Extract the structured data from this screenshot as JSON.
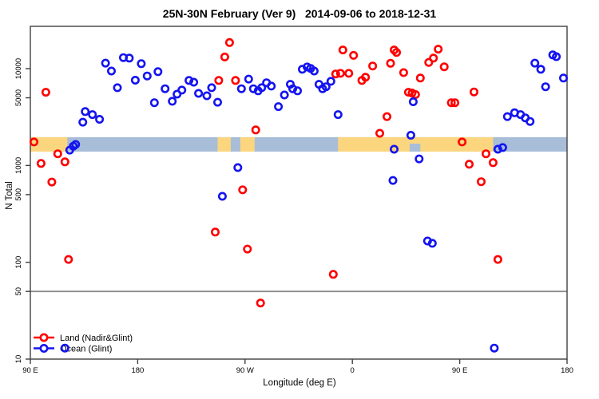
{
  "chart_data": {
    "type": "scatter",
    "title": "25N-30N February (Ver 9)   2014-09-06 to 2018-12-31",
    "xlabel": "Longitude (deg E)",
    "ylabel": "N Total",
    "x_axis": {
      "range_deg": [
        90,
        540
      ],
      "ticks_deg": [
        90,
        180,
        270,
        360,
        450,
        540
      ],
      "tick_labels": [
        "90 E",
        "180",
        "90 W",
        "0",
        "90 E",
        "180"
      ]
    },
    "y_axis": {
      "scale": "log",
      "range": [
        10,
        27000
      ],
      "ticks": [
        10,
        50,
        100,
        500,
        1000,
        5000,
        10000
      ],
      "tick_labels": [
        "10",
        "50",
        "100",
        "500",
        "1000",
        "5000",
        "10000"
      ]
    },
    "grid": false,
    "reference_line": {
      "y": 50,
      "color": "#8c8c8c"
    },
    "map_strip": {
      "comment": "latitude-band world map drawn as horizontal strip",
      "value_top": 1960,
      "value_bottom": 1390,
      "ocean_color": "#a8bdd8",
      "land_color": "#fbd67e",
      "land_segments_deg": [
        [
          90,
          121
        ],
        [
          247,
          258
        ],
        [
          266,
          278
        ],
        [
          348,
          478
        ]
      ],
      "ocean_insets_deg": [
        [
          408,
          417
        ]
      ]
    },
    "legend": {
      "position": "bottom-left"
    },
    "series": [
      {
        "name": "Land (Nadir&Glint)",
        "color": "#ff0000",
        "points": [
          [
            103,
            5700
          ],
          [
            257,
            18600
          ],
          [
            253,
            13200
          ],
          [
            248,
            7550
          ],
          [
            262,
            7550
          ],
          [
            346,
            8800
          ],
          [
            350,
            8950
          ],
          [
            352,
            15600
          ],
          [
            361,
            13700
          ],
          [
            357,
            8950
          ],
          [
            368,
            7550
          ],
          [
            371,
            8150
          ],
          [
            377,
            10650
          ],
          [
            395,
            15600
          ],
          [
            392,
            11350
          ],
          [
            397,
            14700
          ],
          [
            403,
            9100
          ],
          [
            424,
            11600
          ],
          [
            428,
            12850
          ],
          [
            432,
            15900
          ],
          [
            437,
            10450
          ],
          [
            417,
            8000
          ],
          [
            407,
            5700
          ],
          [
            410,
            5600
          ],
          [
            413,
            5400
          ],
          [
            443,
            4450
          ],
          [
            446,
            4450
          ],
          [
            462,
            5750
          ],
          [
            389,
            3200
          ],
          [
            93,
            1750
          ],
          [
            113,
            1320
          ],
          [
            99,
            1050
          ],
          [
            119,
            1090
          ],
          [
            108,
            675
          ],
          [
            279,
            2330
          ],
          [
            383,
            2150
          ],
          [
            268,
            560
          ],
          [
            452,
            1750
          ],
          [
            472,
            1320
          ],
          [
            458,
            1030
          ],
          [
            478,
            1070
          ],
          [
            468,
            680
          ],
          [
            122,
            107
          ],
          [
            245,
            205
          ],
          [
            272,
            137
          ],
          [
            344,
            75
          ],
          [
            283,
            38
          ],
          [
            482,
            107
          ]
        ]
      },
      {
        "name": "Ocean (Glint)",
        "color": "#1414f0",
        "points": [
          [
            153,
            11400
          ],
          [
            158,
            9450
          ],
          [
            168,
            13000
          ],
          [
            173,
            12850
          ],
          [
            183,
            11250
          ],
          [
            163,
            6350
          ],
          [
            178,
            7600
          ],
          [
            188,
            8400
          ],
          [
            197,
            9300
          ],
          [
            194,
            4450
          ],
          [
            203,
            6200
          ],
          [
            209,
            4600
          ],
          [
            213,
            5450
          ],
          [
            217,
            6000
          ],
          [
            223,
            7550
          ],
          [
            227,
            7250
          ],
          [
            231,
            5550
          ],
          [
            238,
            5250
          ],
          [
            242,
            6350
          ],
          [
            247,
            4500
          ],
          [
            267,
            6200
          ],
          [
            273,
            7800
          ],
          [
            277,
            6200
          ],
          [
            281,
            5900
          ],
          [
            284,
            6350
          ],
          [
            288,
            7150
          ],
          [
            292,
            6600
          ],
          [
            298,
            4050
          ],
          [
            303,
            5350
          ],
          [
            308,
            6900
          ],
          [
            310,
            6200
          ],
          [
            314,
            5900
          ],
          [
            318,
            9850
          ],
          [
            322,
            10400
          ],
          [
            325,
            10050
          ],
          [
            328,
            9450
          ],
          [
            332,
            6900
          ],
          [
            335,
            6200
          ],
          [
            338,
            6500
          ],
          [
            342,
            7400
          ],
          [
            348,
            3350
          ],
          [
            411,
            4550
          ],
          [
            513,
            11400
          ],
          [
            518,
            9850
          ],
          [
            528,
            13850
          ],
          [
            531,
            13300
          ],
          [
            537,
            8000
          ],
          [
            522,
            6500
          ],
          [
            490,
            3200
          ],
          [
            496,
            3500
          ],
          [
            501,
            3350
          ],
          [
            505,
            3100
          ],
          [
            509,
            2850
          ],
          [
            134,
            2800
          ],
          [
            136,
            3600
          ],
          [
            142,
            3350
          ],
          [
            148,
            3000
          ],
          [
            123,
            1440
          ],
          [
            126,
            1580
          ],
          [
            128,
            1650
          ],
          [
            395,
            1470
          ],
          [
            264,
            950
          ],
          [
            251,
            480
          ],
          [
            394,
            700
          ],
          [
            409,
            2050
          ],
          [
            416,
            1170
          ],
          [
            482,
            1470
          ],
          [
            486,
            1530
          ],
          [
            423,
            166
          ],
          [
            427,
            157
          ],
          [
            479,
            13
          ],
          [
            119,
            13
          ]
        ]
      }
    ]
  }
}
